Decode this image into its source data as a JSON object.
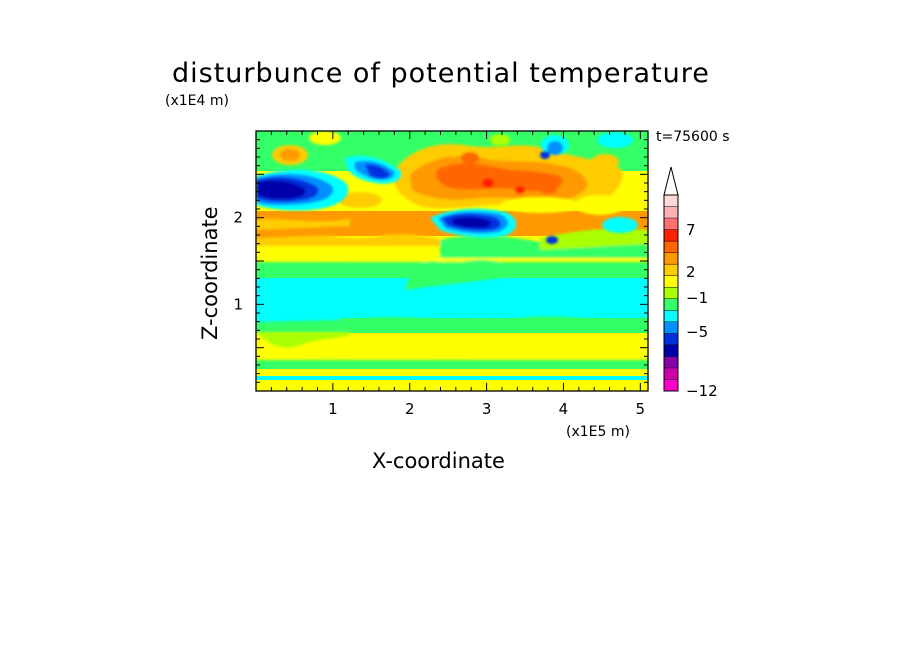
{
  "chart_data": {
    "type": "heatmap",
    "title": "disturbunce of potential temperature",
    "xlabel": "X-coordinate",
    "ylabel": "Z-coordinate",
    "x_unit": "(x1E5 m)",
    "z_unit": "(x1E4 m)",
    "time_label": "t=75600 s",
    "xlim": [
      0,
      5.1
    ],
    "zlim": [
      0,
      3.0
    ],
    "x_ticks": [
      "1",
      "2",
      "3",
      "4",
      "5"
    ],
    "z_ticks": [
      "1",
      "2"
    ],
    "colorbar": {
      "tick_labels": [
        "7",
        "2",
        "−1",
        "−5",
        "−12"
      ],
      "bins": [
        {
          "color": "#ff00cc"
        },
        {
          "color": "#cc00aa"
        },
        {
          "color": "#8800aa"
        },
        {
          "color": "#0000aa"
        },
        {
          "color": "#0030e0"
        },
        {
          "color": "#0090ff"
        },
        {
          "color": "#00ffff"
        },
        {
          "color": "#33ff66"
        },
        {
          "color": "#aaff00"
        },
        {
          "color": "#ffff00"
        },
        {
          "color": "#ffcc00"
        },
        {
          "color": "#ff9900"
        },
        {
          "color": "#ff6600"
        },
        {
          "color": "#ff2000"
        },
        {
          "color": "#ff7070"
        },
        {
          "color": "#ffb0b0"
        },
        {
          "color": "#ffd8d8"
        }
      ]
    },
    "features": [
      {
        "name": "warm-band-upper",
        "x": 3.0,
        "z": 2.4,
        "level": "positive"
      },
      {
        "name": "cold-core-left",
        "x": 0.4,
        "z": 2.35,
        "level": "negative"
      },
      {
        "name": "cold-core-center",
        "x": 2.9,
        "z": 1.9,
        "level": "negative"
      },
      {
        "name": "cool-band-mid",
        "x": 2.5,
        "z": 1.05,
        "level": "near-zero-negative"
      },
      {
        "name": "warm-band-low",
        "x": 2.5,
        "z": 0.55,
        "level": "weak-positive"
      }
    ]
  }
}
